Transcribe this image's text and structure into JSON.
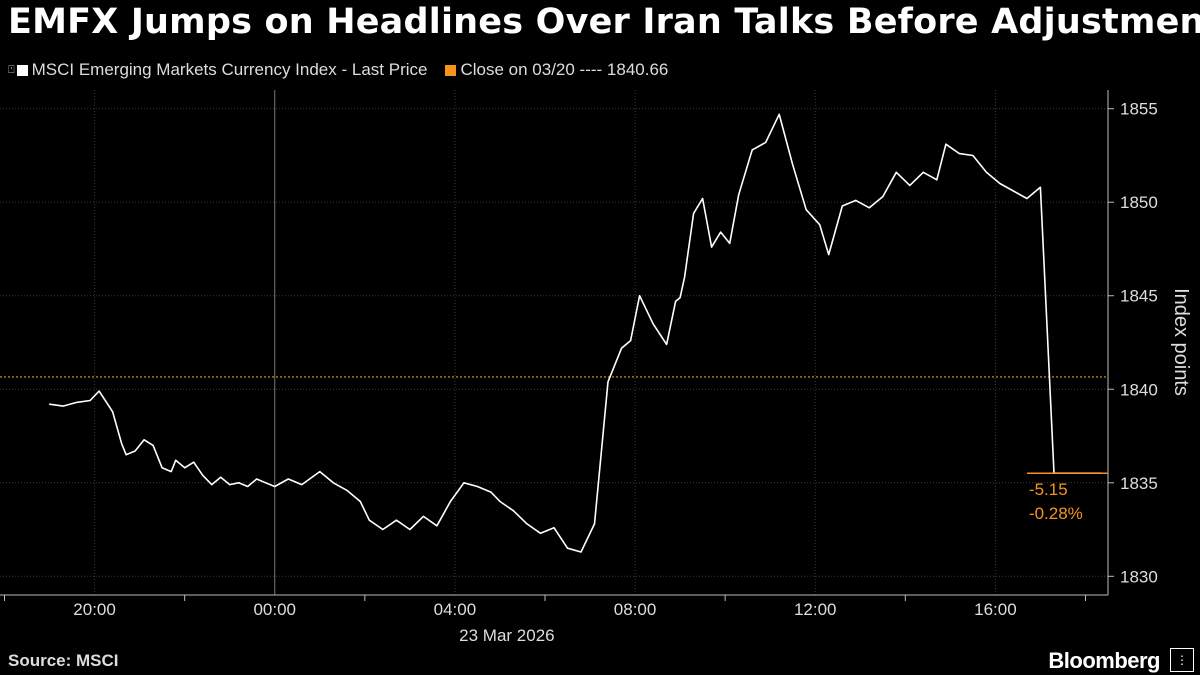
{
  "title": "EMFX Jumps on Headlines Over Iran Talks Before Adjustment",
  "legend": {
    "series_label": "MSCI Emerging Markets Currency Index - Last Price",
    "close_label": "Close on 03/20 ---- 1840.66"
  },
  "colors": {
    "background": "#000000",
    "line": "#ffffff",
    "close": "#f7941d",
    "grid": "#3a3a3a"
  },
  "annotation": {
    "change": "-5.15",
    "pct": "-0.28%"
  },
  "source": "Source: MSCI",
  "brand": "Bloomberg",
  "chart_data": {
    "type": "line",
    "title": "EMFX Jumps on Headlines Over Iran Talks Before Adjustment",
    "ylabel": "Index points",
    "xlabel": "",
    "x_tick_labels": [
      "20:00",
      "00:00",
      "04:00",
      "08:00",
      "12:00",
      "16:00"
    ],
    "x_date_label": "23 Mar 2026",
    "y_tick_labels": [
      "1830",
      "1835",
      "1840",
      "1845",
      "1850",
      "1855"
    ],
    "ylim": [
      1829,
      1856
    ],
    "xlim_hours": [
      17.9,
      42.5
    ],
    "y_axis_side": "right",
    "grid": true,
    "reference_line": {
      "name": "Close on 03/20",
      "value": 1840.66
    },
    "series": [
      {
        "name": "MSCI Emerging Markets Currency Index - Last Price",
        "x_hours": [
          19.0,
          19.3,
          19.6,
          19.9,
          20.1,
          20.4,
          20.6,
          20.7,
          20.9,
          21.1,
          21.3,
          21.5,
          21.7,
          21.8,
          22.0,
          22.2,
          22.4,
          22.6,
          22.8,
          23.0,
          23.2,
          23.4,
          23.6,
          23.8,
          24.0,
          24.3,
          24.6,
          25.0,
          25.3,
          25.6,
          25.9,
          26.1,
          26.4,
          26.7,
          27.0,
          27.3,
          27.6,
          27.9,
          28.2,
          28.5,
          28.8,
          29.0,
          29.3,
          29.6,
          29.9,
          30.2,
          30.5,
          30.8,
          31.1,
          31.4,
          31.7,
          31.9,
          32.1,
          32.4,
          32.7,
          32.9,
          33.0,
          33.1,
          33.3,
          33.5,
          33.7,
          33.9,
          34.1,
          34.3,
          34.6,
          34.9,
          35.2,
          35.5,
          35.8,
          36.1,
          36.3,
          36.6,
          36.9,
          37.2,
          37.5,
          37.8,
          38.1,
          38.4,
          38.7,
          38.9,
          39.2,
          39.5,
          39.8,
          40.1,
          40.4,
          40.7,
          41.0,
          41.3,
          41.6,
          41.9,
          42.2,
          42.3,
          42.35
        ],
        "values": [
          1839.2,
          1839.1,
          1839.3,
          1839.4,
          1839.9,
          1838.8,
          1837.1,
          1836.5,
          1836.7,
          1837.3,
          1837.0,
          1835.8,
          1835.6,
          1836.2,
          1835.8,
          1836.1,
          1835.4,
          1834.9,
          1835.3,
          1834.9,
          1835.0,
          1834.8,
          1835.2,
          1835.0,
          1834.8,
          1835.2,
          1834.9,
          1835.6,
          1835.0,
          1834.6,
          1834.0,
          1833.0,
          1832.5,
          1833.0,
          1832.5,
          1833.2,
          1832.7,
          1834.0,
          1835.0,
          1834.8,
          1834.5,
          1834.0,
          1833.5,
          1832.8,
          1832.3,
          1832.6,
          1831.5,
          1831.3,
          1832.8,
          1840.4,
          1842.2,
          1842.6,
          1845.0,
          1843.5,
          1842.4,
          1844.7,
          1844.9,
          1846.0,
          1849.4,
          1850.2,
          1847.6,
          1848.4,
          1847.8,
          1850.4,
          1852.8,
          1853.2,
          1854.7,
          1852.0,
          1849.6,
          1848.8,
          1847.2,
          1849.8,
          1850.1,
          1849.7,
          1850.3,
          1851.6,
          1850.9,
          1851.6,
          1851.2,
          1853.1,
          1852.6,
          1852.5,
          1851.6,
          1851.0,
          1850.6,
          1850.2,
          1850.8,
          1835.51,
          1835.51,
          1835.51,
          1835.51,
          1835.51,
          1835.51
        ]
      }
    ]
  }
}
